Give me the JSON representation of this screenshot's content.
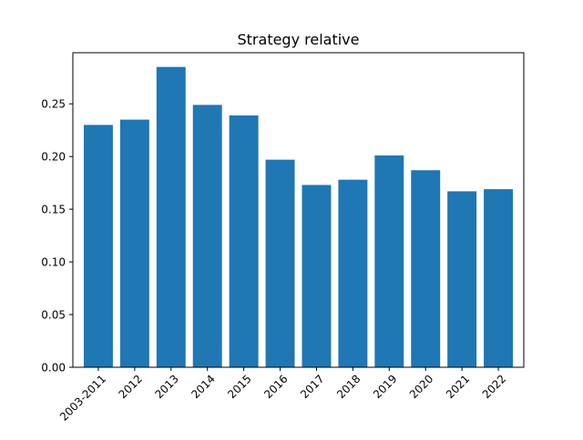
{
  "chart_data": {
    "type": "bar",
    "title": "Strategy relative",
    "xlabel": "",
    "ylabel": "",
    "categories": [
      "2003-2011",
      "2012",
      "2013",
      "2014",
      "2015",
      "2016",
      "2017",
      "2018",
      "2019",
      "2020",
      "2021",
      "2022"
    ],
    "values": [
      0.23,
      0.235,
      0.285,
      0.249,
      0.239,
      0.197,
      0.173,
      0.178,
      0.201,
      0.187,
      0.167,
      0.169
    ],
    "ylim": [
      0,
      0.2985
    ],
    "yticks": [
      0.0,
      0.05,
      0.1,
      0.15,
      0.2,
      0.25
    ],
    "ytick_labels": [
      "0.00",
      "0.05",
      "0.10",
      "0.15",
      "0.20",
      "0.25"
    ],
    "grid": false,
    "legend": "none",
    "colors": {
      "bar": "#1f77b4",
      "axes": "#000000",
      "background": "#ffffff"
    }
  }
}
